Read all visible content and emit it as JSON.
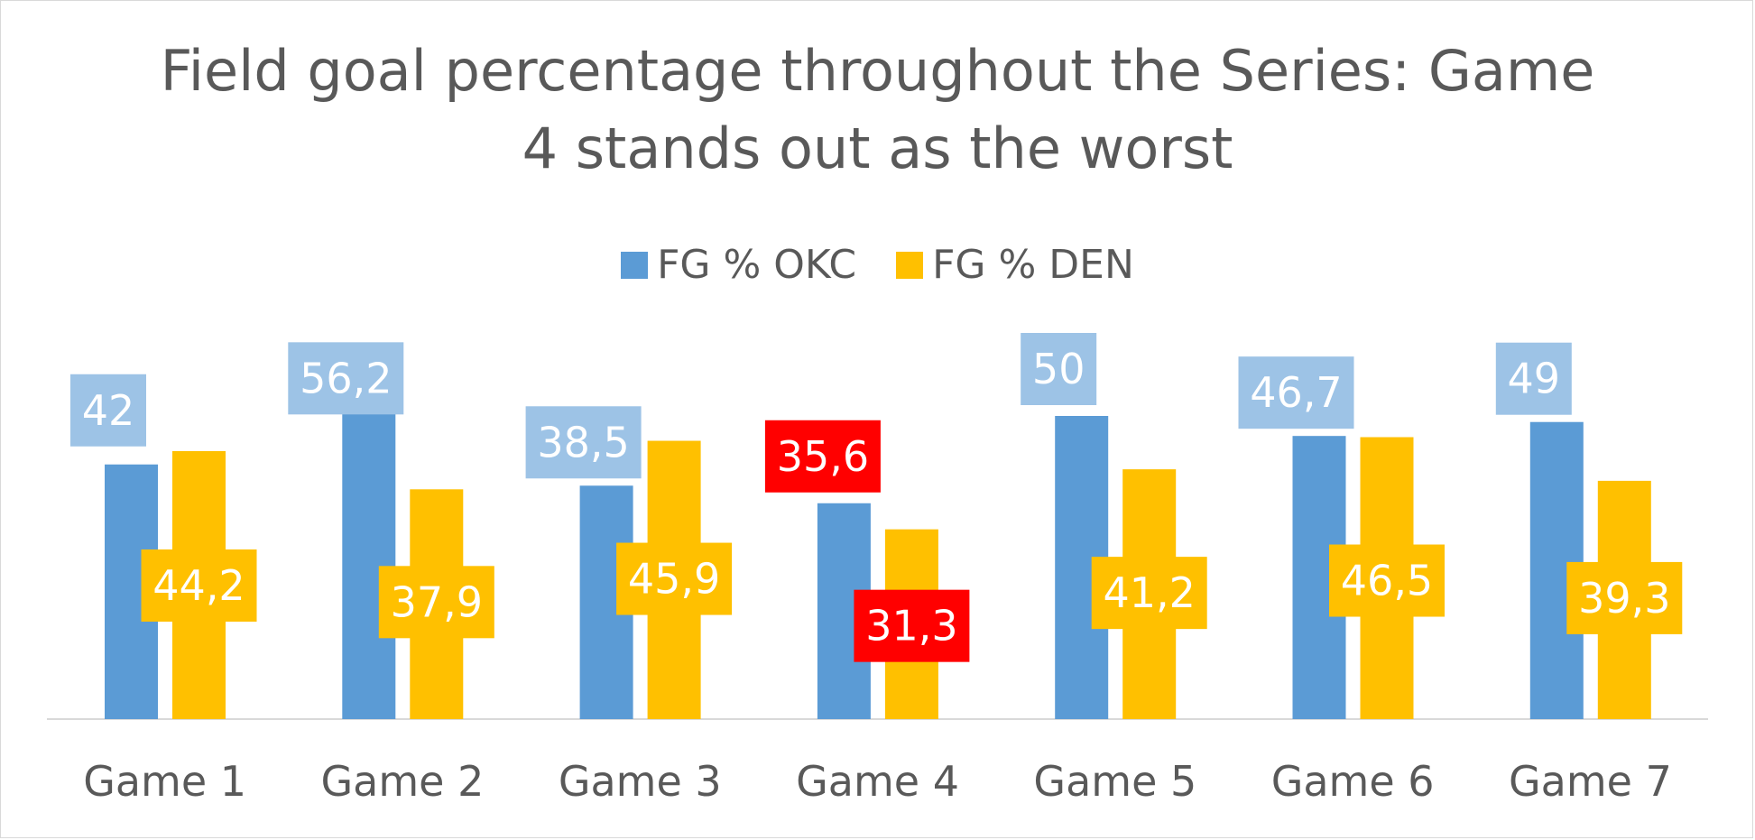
{
  "chart_data": {
    "type": "bar",
    "title": "Field goal percentage throughout the Series: Game 4 stands out as the worst",
    "title_lines": [
      "Field goal percentage throughout the Series: Game",
      "4 stands out as the worst"
    ],
    "categories": [
      "Game 1",
      "Game 2",
      "Game 3",
      "Game 4",
      "Game 5",
      "Game 6",
      "Game 7"
    ],
    "series": [
      {
        "name": "FG % OKC",
        "values": [
          42,
          56.2,
          38.5,
          35.6,
          50,
          46.7,
          49
        ],
        "labels": [
          "42",
          "56,2",
          "38,5",
          "35,6",
          "50",
          "46,7",
          "49"
        ],
        "color": "#5b9bd5",
        "label_bg": "#9dc3e6"
      },
      {
        "name": "FG % DEN",
        "values": [
          44.2,
          37.9,
          45.9,
          31.3,
          41.2,
          46.5,
          39.3
        ],
        "labels": [
          "44,2",
          "37,9",
          "45,9",
          "31,3",
          "41,2",
          "46,5",
          "39,3"
        ],
        "color": "#ffc000",
        "label_bg": "#ffc000"
      }
    ],
    "highlight": {
      "category": "Game 4",
      "label_bg": "#ff0000"
    },
    "ylim": [
      0,
      60
    ],
    "xlabel": "",
    "ylabel": "",
    "legend": "top-center",
    "grid": false
  }
}
